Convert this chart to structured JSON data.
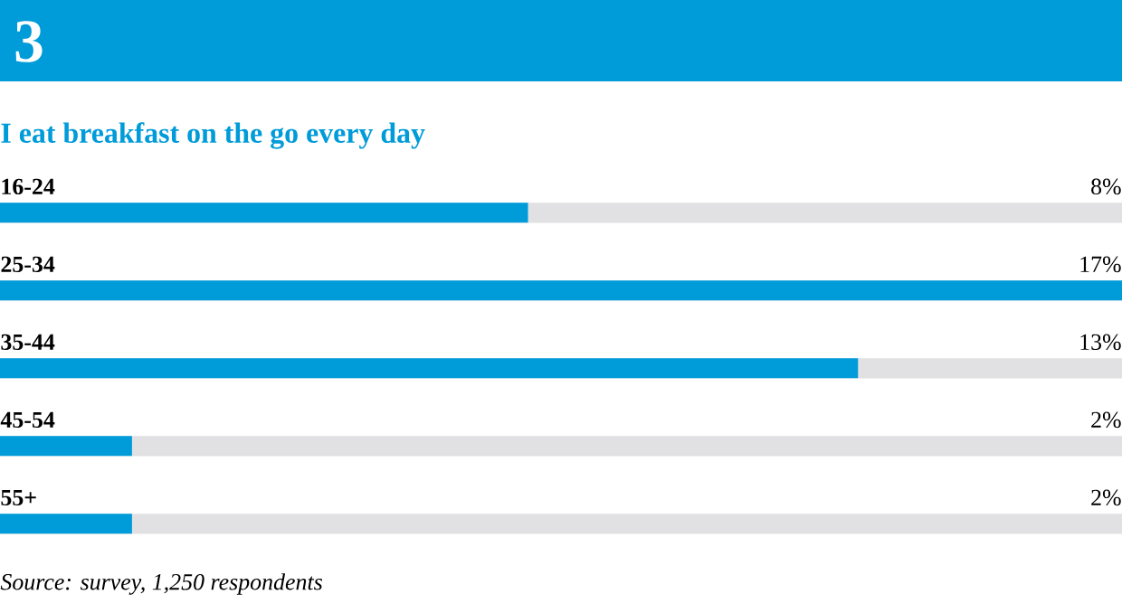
{
  "chart_data": {
    "type": "bar",
    "orientation": "horizontal",
    "title": "I eat breakfast on the go every day",
    "categories": [
      "16-24",
      "25-34",
      "35-44",
      "45-54",
      "55+"
    ],
    "values": [
      8,
      17,
      13,
      2,
      2
    ],
    "value_labels": [
      "8%",
      "17%",
      "13%",
      "2%",
      "2%"
    ],
    "color": "#009bd9",
    "annotations": [
      "3",
      "Source: survey, 1,250 respondents"
    ]
  }
}
